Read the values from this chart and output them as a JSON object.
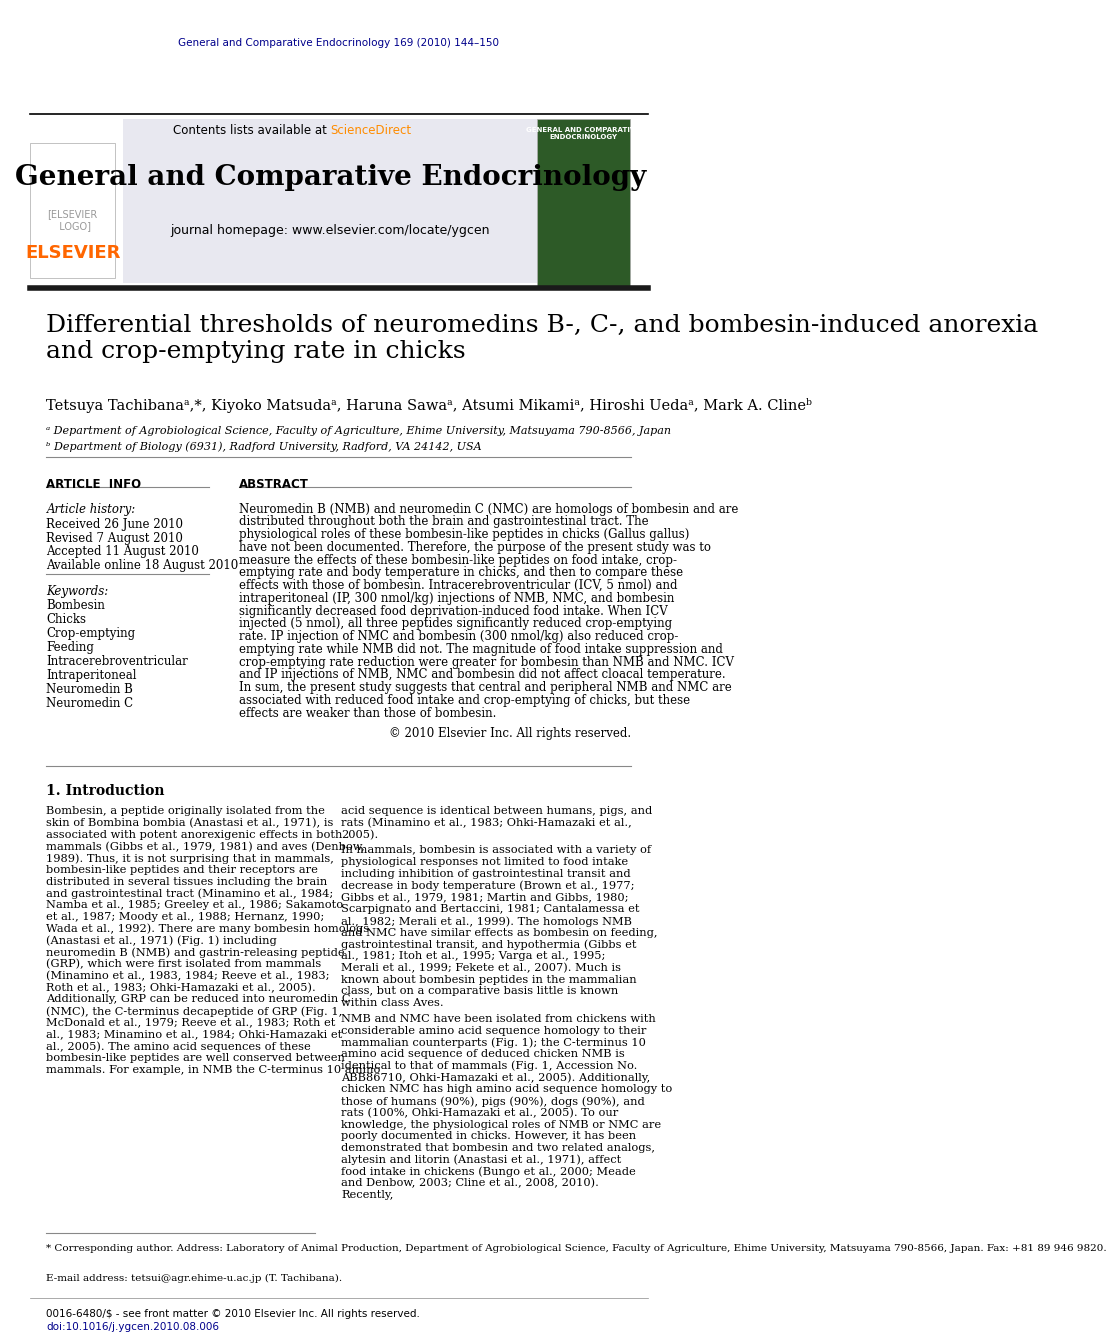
{
  "journal_ref": "General and Comparative Endocrinology 169 (2010) 144–150",
  "journal_ref_color": "#00008B",
  "header_text": "Contents lists available at",
  "sciencedirect": "ScienceDirect",
  "sciencedirect_color": "#FF8C00",
  "journal_name": "General and Comparative Endocrinology",
  "journal_homepage": "journal homepage: www.elsevier.com/locate/ygcen",
  "elsevier_color": "#FF6600",
  "article_title": "Differential thresholds of neuromedins B-, C-, and bombesin-induced anorexia\nand crop-emptying rate in chicks",
  "authors": "Tetsuya Tachibanaᵃ,*, Kiyoko Matsudaᵃ, Haruna Sawaᵃ, Atsumi Mikamiᵃ, Hiroshi Uedaᵃ, Mark A. Clineᵇ",
  "affil_a": "ᵃ Department of Agrobiological Science, Faculty of Agriculture, Ehime University, Matsuyama 790-8566, Japan",
  "affil_b": "ᵇ Department of Biology (6931), Radford University, Radford, VA 24142, USA",
  "article_info_title": "ARTICLE  INFO",
  "abstract_title": "ABSTRACT",
  "article_history_label": "Article history:",
  "received": "Received 26 June 2010",
  "revised": "Revised 7 August 2010",
  "accepted": "Accepted 11 August 2010",
  "available": "Available online 18 August 2010",
  "keywords_label": "Keywords:",
  "keywords": [
    "Bombesin",
    "Chicks",
    "Crop-emptying",
    "Feeding",
    "Intracerebroventricular",
    "Intraperitoneal",
    "Neuromedin B",
    "Neuromedin C"
  ],
  "abstract_text": "Neuromedin B (NMB) and neuromedin C (NMC) are homologs of bombesin and are distributed throughout both the brain and gastrointestinal tract. The physiological roles of these bombesin-like peptides in chicks (Gallus gallus) have not been documented. Therefore, the purpose of the present study was to measure the effects of these bombesin-like peptides on food intake, crop-emptying rate and body temperature in chicks, and then to compare these effects with those of bombesin. Intracerebroventricular (ICV, 5 nmol) and intraperitoneal (IP, 300 nmol/kg) injections of NMB, NMC, and bombesin significantly decreased food deprivation-induced food intake. When ICV injected (5 nmol), all three peptides significantly reduced crop-emptying rate. IP injection of NMC and bombesin (300 nmol/kg) also reduced crop-emptying rate while NMB did not. The magnitude of food intake suppression and crop-emptying rate reduction were greater for bombesin than NMB and NMC. ICV and IP injections of NMB, NMC and bombesin did not affect cloacal temperature. In sum, the present study suggests that central and peripheral NMB and NMC are associated with reduced food intake and crop-emptying of chicks, but these effects are weaker than those of bombesin.",
  "copyright": "© 2010 Elsevier Inc. All rights reserved.",
  "intro_title": "1. Introduction",
  "intro_col1": "Bombesin, a peptide originally isolated from the skin of Bombina bombia (Anastasi et al., 1971), is associated with potent anorexigenic effects in both mammals (Gibbs et al., 1979, 1981) and aves (Denbow, 1989). Thus, it is not surprising that in mammals, bombesin-like peptides and their receptors are distributed in several tissues including the brain and gastrointestinal tract (Minamino et al., 1984; Namba et al., 1985; Greeley et al., 1986; Sakamoto et al., 1987; Moody et al., 1988; Hernanz, 1990; Wada et al., 1992). There are many bombesin homologs (Anastasi et al., 1971) (Fig. 1) including neuromedin B (NMB) and gastrin-releasing peptide (GRP), which were first isolated from mammals (Minamino et al., 1983, 1984; Reeve et al., 1983; Roth et al., 1983; Ohki-Hamazaki et al., 2005). Additionally, GRP can be reduced into neuromedin C (NMC), the C-terminus decapeptide of GRP (Fig. 1, McDonald et al., 1979; Reeve et al., 1983; Roth et al., 1983; Minamino et al., 1984; Ohki-Hamazaki et al., 2005). The amino acid sequences of these bombesin-like peptides are well conserved between mammals. For example, in NMB the C-terminus 10 amino",
  "intro_col2": "acid sequence is identical between humans, pigs, and rats (Minamino et al., 1983; Ohki-Hamazaki et al., 2005).\n    In mammals, bombesin is associated with a variety of physiological responses not limited to food intake including inhibition of gastrointestinal transit and decrease in body temperature (Brown et al., 1977; Gibbs et al., 1979, 1981; Martin and Gibbs, 1980; Scarpignato and Bertaccini, 1981; Cantalamessa et al., 1982; Merali et al., 1999). The homologs NMB and NMC have similar effects as bombesin on feeding, gastrointestinal transit, and hypothermia (Gibbs et al., 1981; Itoh et al., 1995; Varga et al., 1995; Merali et al., 1999; Fekete et al., 2007). Much is known about bombesin peptides in the mammalian class, but on a comparative basis little is known within class Aves.\n    NMB and NMC have been isolated from chickens with considerable amino acid sequence homology to their mammalian counterparts (Fig. 1); the C-terminus 10 amino acid sequence of deduced chicken NMB is identical to that of mammals (Fig. 1, Accession No. ABB86710, Ohki-Hamazaki et al., 2005). Additionally, chicken NMC has high amino acid sequence homology to those of humans (90%), pigs (90%), dogs (90%), and rats (100%, Ohki-Hamazaki et al., 2005). To our knowledge, the physiological roles of NMB or NMC are poorly documented in chicks. However, it has been demonstrated that bombesin and two related analogs, alytesin and litorin (Anastasi et al., 1971), affect food intake in chickens (Bungo et al., 2000; Meade and Denbow, 2003; Cline et al., 2008, 2010). Recently,",
  "footnote1": "* Corresponding author. Address: Laboratory of Animal Production, Department of Agrobiological Science, Faculty of Agriculture, Ehime University, Matsuyama 790-8566, Japan. Fax: +81 89 946 9820.",
  "footnote2": "E-mail address: tetsui@agr.ehime-u.ac.jp (T. Tachibana).",
  "footer_left": "0016-6480/$ - see front matter © 2010 Elsevier Inc. All rights reserved.",
  "footer_doi": "doi:10.1016/j.ygcen.2010.08.006",
  "footer_doi_color": "#00008B",
  "background_color": "#FFFFFF",
  "header_bg_color": "#E8E8F0",
  "dark_bar_color": "#1A1A1A",
  "link_color": "#0000CC",
  "body_text_color": "#000000",
  "title_color": "#000000"
}
